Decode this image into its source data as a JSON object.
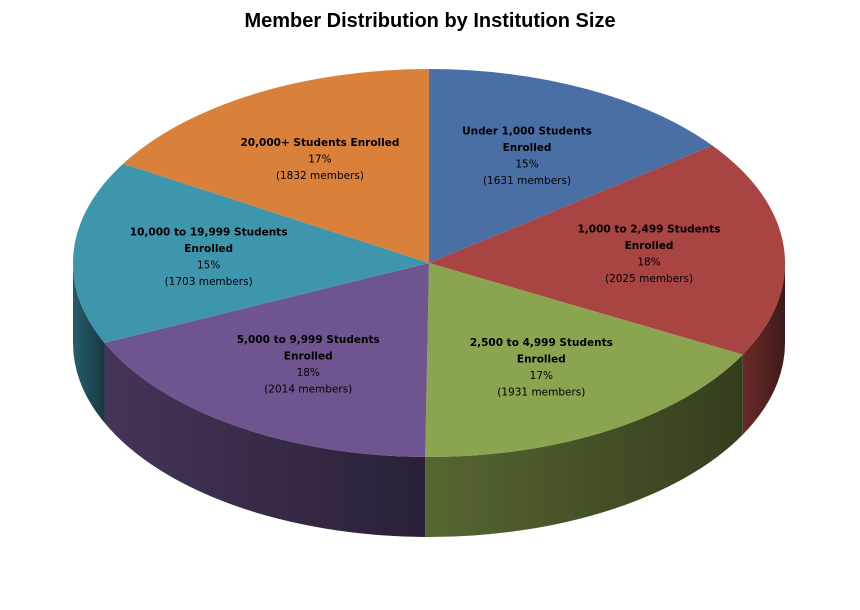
{
  "chart_data": {
    "type": "pie",
    "title": "Member Distribution by Institution Size",
    "slices": [
      {
        "name": "Under 1,000 Students Enrolled",
        "label_lines": [
          "Under 1,000 Students",
          "Enrolled"
        ],
        "percent_label": "15%",
        "members_label": "(1631 members)",
        "value": 1631,
        "color": "#4a6fa5"
      },
      {
        "name": "1,000 to 2,499 Students Enrolled",
        "label_lines": [
          "1,000 to 2,499 Students",
          "Enrolled"
        ],
        "percent_label": "18%",
        "members_label": "(2025 members)",
        "value": 2025,
        "color": "#a84441"
      },
      {
        "name": "2,500 to 4,999 Students Enrolled",
        "label_lines": [
          "2,500 to 4,999 Students",
          "Enrolled"
        ],
        "percent_label": "17%",
        "members_label": "(1931 members)",
        "value": 1931,
        "color": "#8aa44f"
      },
      {
        "name": "5,000 to 9,999 Students Enrolled",
        "label_lines": [
          "5,000 to 9,999 Students",
          "Enrolled"
        ],
        "percent_label": "18%",
        "members_label": "(2014 members)",
        "value": 2014,
        "color": "#6f5590"
      },
      {
        "name": "10,000 to 19,999 Students Enrolled",
        "label_lines": [
          "10,000 to 19,999 Students",
          "Enrolled"
        ],
        "percent_label": "15%",
        "members_label": "(1703 members)",
        "value": 1703,
        "color": "#3e96ad"
      },
      {
        "name": "20,000+ Students Enrolled",
        "label_lines": [
          "20,000+ Students Enrolled"
        ],
        "percent_label": "17%",
        "members_label": "(1832 members)",
        "value": 1832,
        "color": "#d9803a"
      }
    ]
  }
}
